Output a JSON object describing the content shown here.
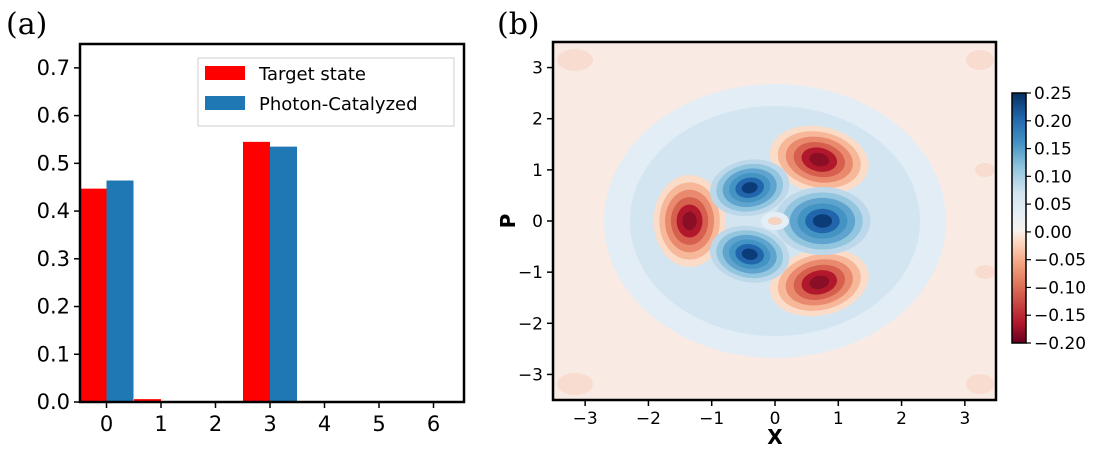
{
  "panels": {
    "a_label": "(a)",
    "b_label": "(b)"
  },
  "chart_data": [
    {
      "type": "bar",
      "panel": "(a)",
      "categories": [
        "0",
        "1",
        "2",
        "3",
        "4",
        "5",
        "6"
      ],
      "series": [
        {
          "name": "Target state",
          "color": "#ff0000",
          "values": [
            0.447,
            0.006,
            0.0,
            0.545,
            0.0,
            0.0,
            0.0
          ]
        },
        {
          "name": "Photon-Catalyzed",
          "color": "#1f77b4",
          "values": [
            0.464,
            0.0,
            0.0,
            0.535,
            0.0,
            0.0,
            0.0
          ]
        }
      ],
      "ylim": [
        0,
        0.75
      ],
      "yticks": [
        "0.0",
        "0.1",
        "0.2",
        "0.3",
        "0.4",
        "0.5",
        "0.6",
        "0.7"
      ],
      "legend": "top-right",
      "grid": false,
      "title": "",
      "xlabel": "",
      "ylabel": ""
    },
    {
      "type": "heatmap",
      "subtype": "filled-contour",
      "panel": "(b)",
      "xlabel": "X",
      "ylabel": "P",
      "xlim": [
        -3.5,
        3.5
      ],
      "ylim": [
        -3.5,
        3.5
      ],
      "xticks": [
        "−3",
        "−2",
        "−1",
        "0",
        "1",
        "2",
        "3"
      ],
      "yticks": [
        "3",
        "2",
        "1",
        "0",
        "−1",
        "−2",
        "−3"
      ],
      "colormap": "RdBu",
      "colorbar": {
        "min": -0.2,
        "max": 0.25,
        "ticks": [
          "0.25",
          "0.20",
          "0.15",
          "0.10",
          "0.05",
          "0.00",
          "−0.05",
          "−0.10",
          "−0.15",
          "−0.20"
        ]
      },
      "features": [
        {
          "sign": "negative",
          "x": -1.35,
          "y": 0.0,
          "peak": -0.2
        },
        {
          "sign": "negative",
          "x": 0.7,
          "y": 1.2,
          "peak": -0.2
        },
        {
          "sign": "negative",
          "x": 0.7,
          "y": -1.2,
          "peak": -0.2
        },
        {
          "sign": "positive",
          "x": -0.4,
          "y": 0.65,
          "peak": 0.25
        },
        {
          "sign": "positive",
          "x": -0.4,
          "y": -0.65,
          "peak": 0.25
        },
        {
          "sign": "positive",
          "x": 0.75,
          "y": 0.0,
          "peak": 0.25
        },
        {
          "sign": "negative",
          "x": 0.0,
          "y": 0.0,
          "peak": -0.03
        }
      ],
      "grid": false,
      "title": ""
    }
  ]
}
